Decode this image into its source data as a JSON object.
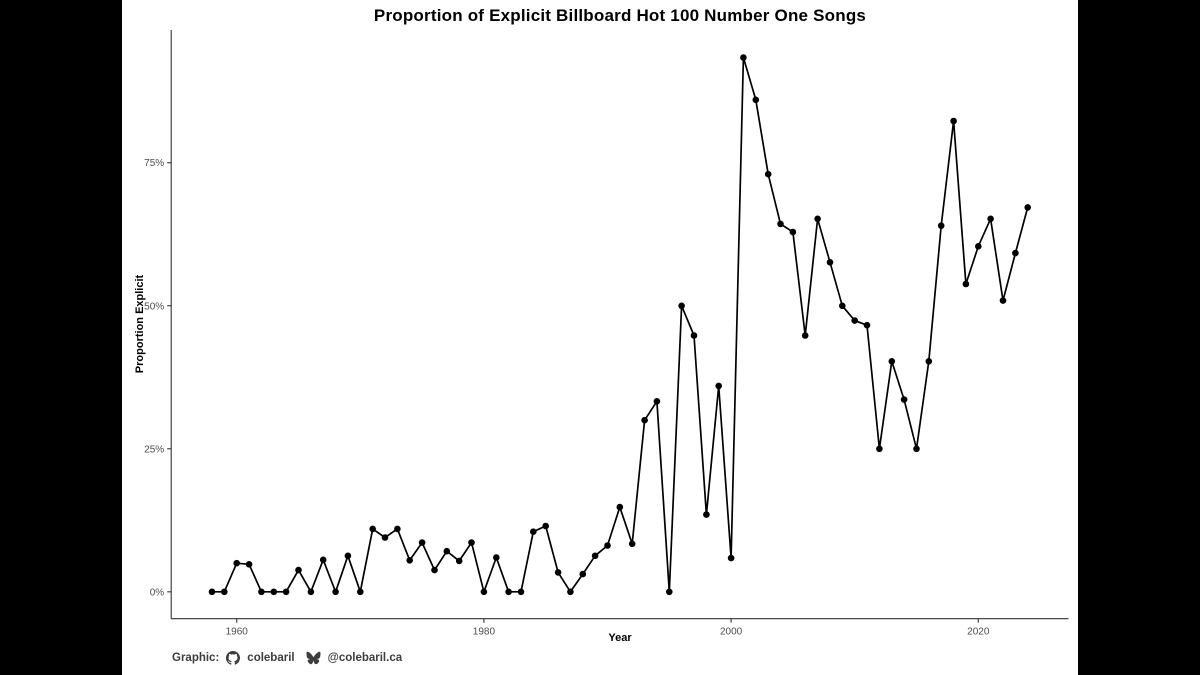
{
  "window": {
    "background": "#000000",
    "canvas_background": "#ffffff"
  },
  "colors": {
    "axis": "#333333",
    "tick_label": "#4d4d4d",
    "title": "#000000",
    "series": "#000000",
    "caption": "#3d3d3d"
  },
  "chart_data": {
    "type": "line",
    "title": "Proportion of Explicit Billboard Hot 100 Number One Songs",
    "xlabel": "Year",
    "ylabel": "Proportion Explicit",
    "legend_position": "none",
    "grid": false,
    "marker": "point",
    "x_tick_values": [
      1960,
      1980,
      2000,
      2020
    ],
    "x_tick_labels": [
      "1960",
      "1980",
      "2000",
      "2020"
    ],
    "y_tick_values": [
      0,
      25,
      50,
      75
    ],
    "y_tick_labels": [
      "0%",
      "25%",
      "50%",
      "75%"
    ],
    "xlim": [
      1954.7,
      2027.3
    ],
    "ylim": [
      -4.7,
      98.2
    ],
    "x": [
      1958,
      1959,
      1960,
      1961,
      1962,
      1963,
      1964,
      1965,
      1966,
      1967,
      1968,
      1969,
      1970,
      1971,
      1972,
      1973,
      1974,
      1975,
      1976,
      1977,
      1978,
      1979,
      1980,
      1981,
      1982,
      1983,
      1984,
      1985,
      1986,
      1987,
      1988,
      1989,
      1990,
      1991,
      1992,
      1993,
      1994,
      1995,
      1996,
      1997,
      1998,
      1999,
      2000,
      2001,
      2002,
      2003,
      2004,
      2005,
      2006,
      2007,
      2008,
      2009,
      2010,
      2011,
      2012,
      2013,
      2014,
      2015,
      2016,
      2017,
      2018,
      2019,
      2020,
      2021,
      2022,
      2023,
      2024
    ],
    "values": [
      0,
      0,
      5,
      4.8,
      0,
      0,
      0,
      3.8,
      0,
      5.6,
      0,
      6.3,
      0,
      11,
      9.5,
      11,
      5.5,
      8.6,
      3.8,
      7.1,
      5.4,
      8.6,
      0,
      6,
      0,
      0,
      10.5,
      11.5,
      3.4,
      0,
      3.1,
      6.3,
      8.1,
      14.8,
      8.4,
      30,
      33.3,
      0,
      50,
      44.8,
      13.5,
      36,
      5.9,
      93.4,
      86,
      73,
      64.3,
      62.9,
      44.8,
      65.2,
      57.6,
      50,
      47.4,
      46.6,
      25,
      40.3,
      33.6,
      25,
      40.3,
      64,
      82.3,
      53.8,
      60.4,
      65.2,
      50.9,
      59.2,
      67.2
    ]
  },
  "caption": {
    "prefix": "Graphic:",
    "github_icon": "github-mark",
    "github_handle": "colebaril",
    "bluesky_icon": "bluesky-butterfly",
    "bluesky_handle": "@colebaril.ca"
  }
}
